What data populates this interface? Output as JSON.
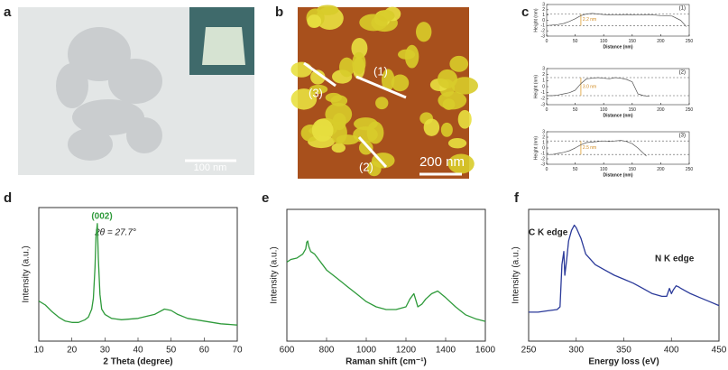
{
  "panel_labels": [
    "a",
    "b",
    "c",
    "d",
    "e",
    "f"
  ],
  "images": [
    {
      "scale_bar": "100 nm"
    },
    {
      "scale_bar": "200 nm",
      "markers": [
        "(3)",
        "(1)",
        "(2)"
      ]
    }
  ],
  "chart_data": [
    {
      "type": "line",
      "label": "(1)",
      "annotation": "2.2 nm",
      "xlabel": "Distance (nm)",
      "ylabel": "Height (nm)",
      "color": "#555555",
      "x": [
        0,
        10,
        20,
        30,
        40,
        50,
        60,
        70,
        80,
        90,
        100,
        120,
        140,
        160,
        180,
        200,
        220,
        235,
        245
      ],
      "values": [
        -1,
        -0.9,
        -0.8,
        -0.6,
        -0.2,
        0.3,
        0.9,
        1.2,
        1.3,
        1.2,
        1.1,
        1.0,
        1.1,
        1.0,
        1.1,
        0.9,
        0.8,
        0,
        -1.2
      ],
      "ref_lines": [
        1.2,
        -1
      ],
      "xlim": [
        0,
        250
      ],
      "xticks": [
        0,
        50,
        100,
        150,
        200,
        250
      ],
      "ylim": [
        -3,
        3
      ],
      "yticks": [
        -3,
        -2,
        -1,
        0,
        1,
        2,
        3
      ]
    },
    {
      "type": "line",
      "label": "(2)",
      "annotation": "3.0 nm",
      "xlabel": "Distance (nm)",
      "ylabel": "Height (nm)",
      "color": "#555555",
      "x": [
        0,
        10,
        20,
        30,
        40,
        50,
        60,
        70,
        80,
        90,
        100,
        110,
        120,
        130,
        140,
        150,
        160,
        170,
        180
      ],
      "values": [
        -1.5,
        -1.5,
        -1.4,
        -1.2,
        -1,
        -0.6,
        0.5,
        1.3,
        1.4,
        1.5,
        1.4,
        1.3,
        1.5,
        1.4,
        1.2,
        0.8,
        -1.2,
        -1.5,
        -1.6
      ],
      "ref_lines": [
        1.5,
        -1.5
      ],
      "xlim": [
        0,
        250
      ],
      "xticks": [
        0,
        50,
        100,
        150,
        200,
        250
      ],
      "ylim": [
        -3,
        3
      ],
      "yticks": [
        -3,
        -2,
        -1,
        0,
        1,
        2,
        3
      ]
    },
    {
      "type": "line",
      "label": "(3)",
      "annotation": "2.5 nm",
      "xlabel": "Distance (nm)",
      "ylabel": "Height (nm)",
      "color": "#555555",
      "x": [
        0,
        10,
        20,
        30,
        40,
        50,
        60,
        70,
        80,
        90,
        100,
        110,
        120,
        130,
        140,
        150,
        160,
        170,
        175
      ],
      "values": [
        -1.2,
        -1.2,
        -1,
        -0.8,
        -0.5,
        0,
        0.6,
        1,
        1.1,
        1.2,
        1.3,
        1.2,
        1.3,
        1.4,
        1.2,
        0.8,
        0,
        -1,
        -1.5
      ],
      "ref_lines": [
        1.3,
        -1.2
      ],
      "xlim": [
        0,
        250
      ],
      "xticks": [
        0,
        50,
        100,
        150,
        200,
        250
      ],
      "ylim": [
        -3,
        3
      ],
      "yticks": [
        -3,
        -2,
        -1,
        0,
        1,
        2,
        3
      ]
    },
    {
      "type": "line",
      "xlabel": "2 Theta (degree)",
      "ylabel": "Intensity (a.u.)",
      "color": "#2e9a3a",
      "annotations": [
        "(002)",
        "2θ = 27.7°"
      ],
      "x": [
        10,
        12,
        14,
        16,
        18,
        20,
        22,
        24,
        25,
        26,
        26.5,
        27,
        27.3,
        27.7,
        28,
        28.5,
        29,
        30,
        32,
        35,
        40,
        45,
        48,
        50,
        52,
        55,
        60,
        65,
        70
      ],
      "values": [
        30,
        27,
        22,
        18,
        15,
        14,
        14,
        16,
        18,
        24,
        32,
        55,
        78,
        88,
        62,
        35,
        24,
        20,
        17,
        16,
        17,
        20,
        24,
        23,
        20,
        17,
        15,
        13,
        12
      ],
      "xlim": [
        10,
        70
      ],
      "xticks": [
        10,
        20,
        30,
        40,
        50,
        60,
        70
      ],
      "ylim": [
        0,
        100
      ]
    },
    {
      "type": "line",
      "xlabel": "Raman shift (cm⁻¹)",
      "ylabel": "Intensity (a.u.)",
      "color": "#2e9a3a",
      "x": [
        600,
        620,
        650,
        680,
        695,
        700,
        705,
        710,
        720,
        740,
        760,
        780,
        800,
        850,
        900,
        950,
        1000,
        1050,
        1100,
        1150,
        1200,
        1220,
        1240,
        1260,
        1280,
        1300,
        1330,
        1360,
        1400,
        1450,
        1500,
        1550,
        1600
      ],
      "values": [
        60,
        62,
        63,
        66,
        70,
        75,
        76,
        72,
        68,
        66,
        62,
        58,
        54,
        48,
        42,
        36,
        30,
        26,
        24,
        24,
        26,
        32,
        36,
        26,
        28,
        32,
        36,
        38,
        33,
        26,
        20,
        17,
        15
      ],
      "xlim": [
        600,
        1600
      ],
      "xticks": [
        600,
        800,
        1000,
        1200,
        1400,
        1600
      ],
      "ylim": [
        0,
        100
      ]
    },
    {
      "type": "line",
      "xlabel": "Energy loss (eV)",
      "ylabel": "Intensity (a.u.)",
      "color": "#2b3a9a",
      "annotations": [
        "C K edge",
        "N K edge"
      ],
      "x": [
        250,
        260,
        270,
        280,
        283,
        285,
        287,
        288,
        290,
        292,
        295,
        298,
        300,
        305,
        310,
        320,
        330,
        340,
        350,
        360,
        370,
        380,
        390,
        395,
        398,
        400,
        402,
        405,
        408,
        410,
        420,
        430,
        440,
        450
      ],
      "values": [
        22,
        22,
        23,
        24,
        26,
        58,
        68,
        50,
        62,
        76,
        84,
        88,
        86,
        78,
        66,
        58,
        54,
        50,
        47,
        44,
        40,
        36,
        34,
        34,
        40,
        36,
        39,
        42,
        41,
        40,
        36,
        33,
        30,
        27
      ],
      "xlim": [
        250,
        450
      ],
      "xticks": [
        250,
        300,
        350,
        400,
        450
      ],
      "ylim": [
        0,
        100
      ]
    }
  ]
}
